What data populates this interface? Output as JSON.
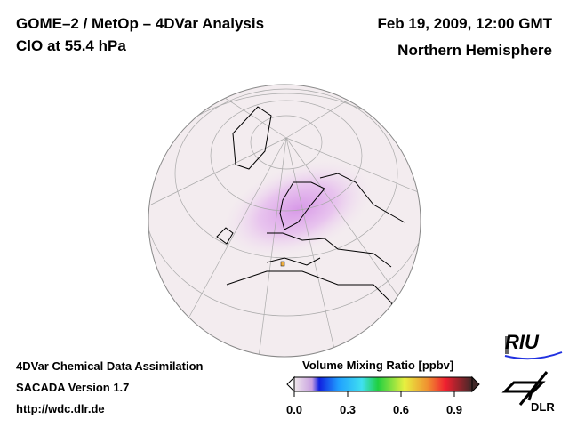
{
  "header": {
    "title": "GOME–2 / MetOp – 4DVar Analysis",
    "subtitle": "ClO at 55.4 hPa",
    "date": "Feb 19, 2009, 12:00 GMT",
    "region": "Northern Hemisphere"
  },
  "footer": {
    "line1": "4DVar Chemical Data Assimilation",
    "line2": "SACADA Version 1.7",
    "line3": "http://wdc.dlr.de"
  },
  "colorbar": {
    "title": "Volume Mixing Ratio [ppbv]",
    "ticks": [
      "0.0",
      "0.3",
      "0.6",
      "0.9"
    ],
    "range": [
      0.0,
      1.0
    ],
    "colors": [
      "#f0e8ec",
      "#d8b8e0",
      "#1020e0",
      "#20a0ff",
      "#40e0f0",
      "#20d040",
      "#e0f040",
      "#f0a030",
      "#f02030",
      "#503030"
    ]
  },
  "logos": {
    "riu": "RIU",
    "dlr": "DLR"
  }
}
